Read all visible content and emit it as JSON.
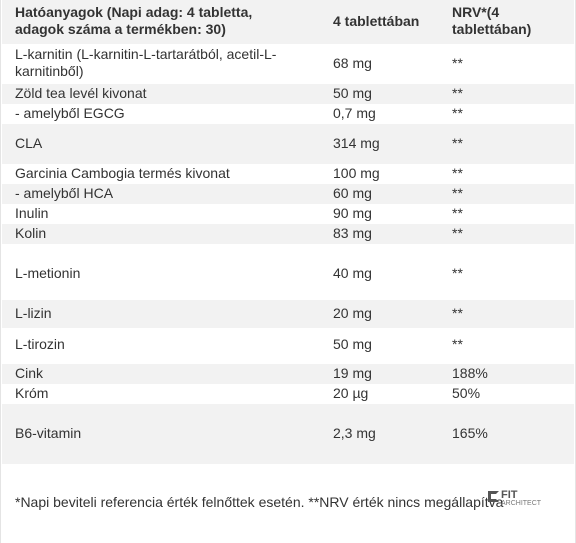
{
  "header": {
    "col1": "Hatóanyagok (Napi adag: 4 tabletta, adagok száma a termékben: 30)",
    "col2": "4 tablettában",
    "col3": "NRV*(4 tablettában)"
  },
  "rows": [
    {
      "name": "L-karnitin (L-karnitin-L-tartarátból, acetil-L-karnitinből)",
      "amount": "68 mg",
      "nrv": "**"
    },
    {
      "name": "Zöld tea levél kivonat",
      "amount": "50 mg",
      "nrv": "**"
    },
    {
      "name": "- amelyből EGCG",
      "amount": "0,7 mg",
      "nrv": "**"
    },
    {
      "name": "CLA",
      "amount": "314 mg",
      "nrv": "**"
    },
    {
      "name": "Garcinia Cambogia termés kivonat",
      "amount": "100 mg",
      "nrv": "**"
    },
    {
      "name": "- amelyből HCA",
      "amount": "60 mg",
      "nrv": "**"
    },
    {
      "name": "Inulin",
      "amount": "90 mg",
      "nrv": "**"
    },
    {
      "name": "Kolin",
      "amount": "83 mg",
      "nrv": "**"
    },
    {
      "name": "L-metionin",
      "amount": "40 mg",
      "nrv": "**"
    },
    {
      "name": "L-lizin",
      "amount": "20 mg",
      "nrv": "**"
    },
    {
      "name": "L-tirozin",
      "amount": "50 mg",
      "nrv": "**"
    },
    {
      "name": "Cink",
      "amount": "19 mg",
      "nrv": "188%"
    },
    {
      "name": "Króm",
      "amount": "20 µg",
      "nrv": "50%"
    },
    {
      "name": "B6-vitamin",
      "amount": "2,3 mg",
      "nrv": "165%"
    }
  ],
  "footer": {
    "note": "*Napi beviteli referencia érték felnőttek esetén. **NRV érték nincs megállapítva"
  },
  "logo": {
    "brand": "FIT",
    "sub": "ARCHITECT"
  },
  "colors": {
    "alt_row": "#f2f2f2",
    "text": "#333333"
  }
}
